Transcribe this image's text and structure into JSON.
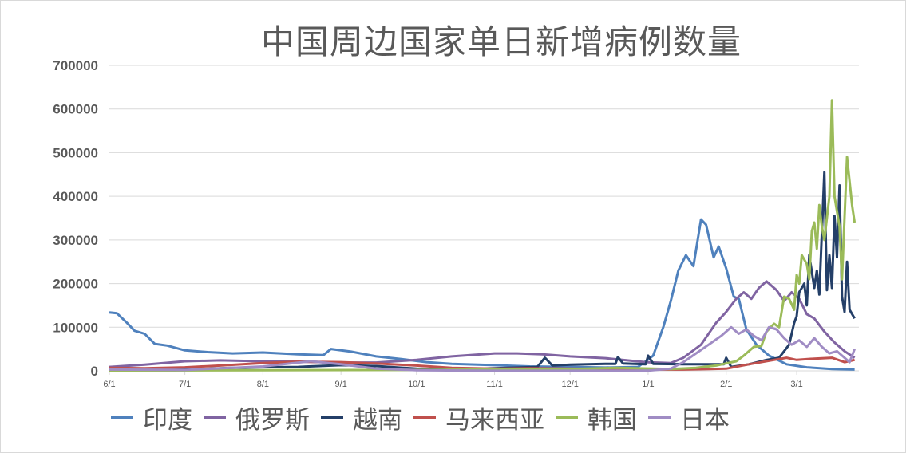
{
  "chart_data": {
    "type": "line",
    "title": "中国周边国家单日新增病例数量",
    "xlabel": "",
    "ylabel": "",
    "ylim": [
      0,
      700000
    ],
    "yticks": [
      "0",
      "100000",
      "200000",
      "300000",
      "400000",
      "500000",
      "600000",
      "700000"
    ],
    "xticks": [
      "6/1",
      "7/1",
      "8/1",
      "9/1",
      "10/1",
      "11/1",
      "12/1",
      "1/1",
      "2/1",
      "3/1"
    ],
    "xtick_dates": [
      "2021-06-01",
      "2021-07-01",
      "2021-08-01",
      "2021-09-01",
      "2021-10-01",
      "2021-11-01",
      "2021-12-01",
      "2022-01-01",
      "2022-02-01",
      "2022-03-01"
    ],
    "grid": true,
    "legend": "bottom",
    "series": [
      {
        "name": "印度",
        "color": "#4f81bd",
        "points": [
          [
            "2021-06-01",
            134000
          ],
          [
            "2021-06-04",
            132000
          ],
          [
            "2021-06-08",
            110000
          ],
          [
            "2021-06-11",
            92000
          ],
          [
            "2021-06-15",
            85000
          ],
          [
            "2021-06-19",
            62000
          ],
          [
            "2021-06-24",
            58000
          ],
          [
            "2021-07-01",
            47000
          ],
          [
            "2021-07-10",
            43000
          ],
          [
            "2021-07-20",
            40000
          ],
          [
            "2021-08-01",
            42000
          ],
          [
            "2021-08-15",
            38000
          ],
          [
            "2021-08-25",
            36000
          ],
          [
            "2021-08-28",
            50000
          ],
          [
            "2021-09-05",
            44000
          ],
          [
            "2021-09-15",
            33000
          ],
          [
            "2021-09-25",
            27000
          ],
          [
            "2021-10-05",
            20000
          ],
          [
            "2021-10-15",
            16000
          ],
          [
            "2021-11-01",
            13000
          ],
          [
            "2021-11-15",
            10000
          ],
          [
            "2021-12-01",
            9000
          ],
          [
            "2021-12-15",
            7500
          ],
          [
            "2021-12-28",
            9000
          ],
          [
            "2022-01-03",
            35000
          ],
          [
            "2022-01-07",
            100000
          ],
          [
            "2022-01-10",
            160000
          ],
          [
            "2022-01-13",
            230000
          ],
          [
            "2022-01-16",
            265000
          ],
          [
            "2022-01-19",
            240000
          ],
          [
            "2022-01-22",
            347000
          ],
          [
            "2022-01-24",
            335000
          ],
          [
            "2022-01-27",
            260000
          ],
          [
            "2022-01-29",
            285000
          ],
          [
            "2022-02-01",
            235000
          ],
          [
            "2022-02-04",
            170000
          ],
          [
            "2022-02-06",
            165000
          ],
          [
            "2022-02-09",
            95000
          ],
          [
            "2022-02-13",
            60000
          ],
          [
            "2022-02-18",
            35000
          ],
          [
            "2022-02-25",
            15000
          ],
          [
            "2022-03-05",
            8000
          ],
          [
            "2022-03-15",
            4000
          ],
          [
            "2022-03-24",
            3000
          ]
        ]
      },
      {
        "name": "俄罗斯",
        "color": "#8064a2",
        "points": [
          [
            "2021-06-01",
            9000
          ],
          [
            "2021-06-15",
            14000
          ],
          [
            "2021-07-01",
            22000
          ],
          [
            "2021-07-15",
            24000
          ],
          [
            "2021-08-01",
            22000
          ],
          [
            "2021-08-15",
            21000
          ],
          [
            "2021-09-01",
            19000
          ],
          [
            "2021-09-15",
            19000
          ],
          [
            "2021-10-01",
            25000
          ],
          [
            "2021-10-15",
            33000
          ],
          [
            "2021-11-01",
            40000
          ],
          [
            "2021-11-10",
            40000
          ],
          [
            "2021-11-20",
            38000
          ],
          [
            "2021-12-01",
            33000
          ],
          [
            "2021-12-15",
            29000
          ],
          [
            "2021-12-31",
            20000
          ],
          [
            "2022-01-10",
            18000
          ],
          [
            "2022-01-15",
            30000
          ],
          [
            "2022-01-22",
            60000
          ],
          [
            "2022-01-28",
            110000
          ],
          [
            "2022-02-01",
            135000
          ],
          [
            "2022-02-05",
            165000
          ],
          [
            "2022-02-08",
            180000
          ],
          [
            "2022-02-11",
            165000
          ],
          [
            "2022-02-14",
            190000
          ],
          [
            "2022-02-17",
            205000
          ],
          [
            "2022-02-21",
            185000
          ],
          [
            "2022-02-24",
            160000
          ],
          [
            "2022-02-27",
            180000
          ],
          [
            "2022-03-02",
            165000
          ],
          [
            "2022-03-05",
            130000
          ],
          [
            "2022-03-08",
            120000
          ],
          [
            "2022-03-12",
            90000
          ],
          [
            "2022-03-16",
            65000
          ],
          [
            "2022-03-20",
            45000
          ],
          [
            "2022-03-24",
            30000
          ]
        ]
      },
      {
        "name": "越南",
        "color": "#243f68",
        "points": [
          [
            "2021-06-01",
            200
          ],
          [
            "2021-07-01",
            3000
          ],
          [
            "2021-07-20",
            7000
          ],
          [
            "2021-08-01",
            8000
          ],
          [
            "2021-08-15",
            9000
          ],
          [
            "2021-09-01",
            13000
          ],
          [
            "2021-09-15",
            11000
          ],
          [
            "2021-10-01",
            5000
          ],
          [
            "2021-10-15",
            3500
          ],
          [
            "2021-11-01",
            6000
          ],
          [
            "2021-11-18",
            9000
          ],
          [
            "2021-11-21",
            30000
          ],
          [
            "2021-11-24",
            12000
          ],
          [
            "2021-12-01",
            14000
          ],
          [
            "2021-12-15",
            16000
          ],
          [
            "2021-12-19",
            16000
          ],
          [
            "2021-12-20",
            32000
          ],
          [
            "2021-12-22",
            17000
          ],
          [
            "2021-12-31",
            15000
          ],
          [
            "2022-01-01",
            35000
          ],
          [
            "2022-01-03",
            16000
          ],
          [
            "2022-01-15",
            15000
          ],
          [
            "2022-01-31",
            15000
          ],
          [
            "2022-02-01",
            30000
          ],
          [
            "2022-02-03",
            9000
          ],
          [
            "2022-02-10",
            15000
          ],
          [
            "2022-02-17",
            25000
          ],
          [
            "2022-02-22",
            30000
          ],
          [
            "2022-02-26",
            60000
          ],
          [
            "2022-02-28",
            110000
          ],
          [
            "2022-03-01",
            125000
          ],
          [
            "2022-03-02",
            180000
          ],
          [
            "2022-03-04",
            200000
          ],
          [
            "2022-03-05",
            150000
          ],
          [
            "2022-03-06",
            265000
          ],
          [
            "2022-03-08",
            190000
          ],
          [
            "2022-03-09",
            230000
          ],
          [
            "2022-03-10",
            175000
          ],
          [
            "2022-03-12",
            455000
          ],
          [
            "2022-03-13",
            185000
          ],
          [
            "2022-03-14",
            265000
          ],
          [
            "2022-03-15",
            190000
          ],
          [
            "2022-03-16",
            355000
          ],
          [
            "2022-03-17",
            260000
          ],
          [
            "2022-03-18",
            425000
          ],
          [
            "2022-03-19",
            170000
          ],
          [
            "2022-03-20",
            135000
          ],
          [
            "2022-03-21",
            250000
          ],
          [
            "2022-03-22",
            140000
          ],
          [
            "2022-03-24",
            120000
          ]
        ]
      },
      {
        "name": "马来西亚",
        "color": "#c0504d",
        "points": [
          [
            "2021-06-01",
            7000
          ],
          [
            "2021-06-15",
            6000
          ],
          [
            "2021-07-01",
            8000
          ],
          [
            "2021-07-15",
            12000
          ],
          [
            "2021-08-01",
            18000
          ],
          [
            "2021-08-15",
            21000
          ],
          [
            "2021-09-01",
            20000
          ],
          [
            "2021-09-15",
            17000
          ],
          [
            "2021-10-01",
            12000
          ],
          [
            "2021-10-15",
            7000
          ],
          [
            "2021-11-01",
            5000
          ],
          [
            "2021-11-15",
            6000
          ],
          [
            "2021-12-01",
            5000
          ],
          [
            "2021-12-15",
            4000
          ],
          [
            "2022-01-01",
            3000
          ],
          [
            "2022-01-15",
            3000
          ],
          [
            "2022-02-01",
            5000
          ],
          [
            "2022-02-10",
            15000
          ],
          [
            "2022-02-20",
            25000
          ],
          [
            "2022-02-25",
            30000
          ],
          [
            "2022-03-01",
            25000
          ],
          [
            "2022-03-08",
            28000
          ],
          [
            "2022-03-15",
            30000
          ],
          [
            "2022-03-20",
            20000
          ],
          [
            "2022-03-24",
            25000
          ]
        ]
      },
      {
        "name": "韩国",
        "color": "#9bbb59",
        "points": [
          [
            "2021-06-01",
            500
          ],
          [
            "2021-08-01",
            1500
          ],
          [
            "2021-10-01",
            2000
          ],
          [
            "2021-12-01",
            4000
          ],
          [
            "2021-12-20",
            7000
          ],
          [
            "2022-01-10",
            4000
          ],
          [
            "2022-01-20",
            7000
          ],
          [
            "2022-01-28",
            12000
          ],
          [
            "2022-02-01",
            17000
          ],
          [
            "2022-02-05",
            22000
          ],
          [
            "2022-02-08",
            35000
          ],
          [
            "2022-02-12",
            55000
          ],
          [
            "2022-02-15",
            57000
          ],
          [
            "2022-02-17",
            90000
          ],
          [
            "2022-02-20",
            108000
          ],
          [
            "2022-02-22",
            100000
          ],
          [
            "2022-02-24",
            170000
          ],
          [
            "2022-02-26",
            165000
          ],
          [
            "2022-02-28",
            140000
          ],
          [
            "2022-03-01",
            220000
          ],
          [
            "2022-03-02",
            200000
          ],
          [
            "2022-03-03",
            265000
          ],
          [
            "2022-03-05",
            245000
          ],
          [
            "2022-03-06",
            210000
          ],
          [
            "2022-03-07",
            320000
          ],
          [
            "2022-03-08",
            340000
          ],
          [
            "2022-03-09",
            280000
          ],
          [
            "2022-03-10",
            380000
          ],
          [
            "2022-03-11",
            330000
          ],
          [
            "2022-03-12",
            300000
          ],
          [
            "2022-03-14",
            400000
          ],
          [
            "2022-03-15",
            620000
          ],
          [
            "2022-03-16",
            400000
          ],
          [
            "2022-03-18",
            330000
          ],
          [
            "2022-03-19",
            210000
          ],
          [
            "2022-03-21",
            490000
          ],
          [
            "2022-03-23",
            380000
          ],
          [
            "2022-03-24",
            340000
          ]
        ]
      },
      {
        "name": "日本",
        "color": "#a08cc4",
        "points": [
          [
            "2021-06-01",
            3000
          ],
          [
            "2021-07-01",
            2000
          ],
          [
            "2021-08-01",
            10000
          ],
          [
            "2021-08-20",
            22000
          ],
          [
            "2021-09-01",
            15000
          ],
          [
            "2021-09-15",
            5000
          ],
          [
            "2021-10-01",
            1500
          ],
          [
            "2021-11-01",
            200
          ],
          [
            "2021-12-01",
            200
          ],
          [
            "2022-01-01",
            500
          ],
          [
            "2022-01-10",
            5000
          ],
          [
            "2022-01-15",
            20000
          ],
          [
            "2022-01-20",
            40000
          ],
          [
            "2022-01-25",
            60000
          ],
          [
            "2022-01-30",
            80000
          ],
          [
            "2022-02-03",
            100000
          ],
          [
            "2022-02-06",
            85000
          ],
          [
            "2022-02-09",
            95000
          ],
          [
            "2022-02-12",
            80000
          ],
          [
            "2022-02-15",
            70000
          ],
          [
            "2022-02-18",
            100000
          ],
          [
            "2022-02-21",
            95000
          ],
          [
            "2022-02-24",
            75000
          ],
          [
            "2022-02-27",
            60000
          ],
          [
            "2022-03-02",
            70000
          ],
          [
            "2022-03-05",
            55000
          ],
          [
            "2022-03-08",
            75000
          ],
          [
            "2022-03-11",
            55000
          ],
          [
            "2022-03-14",
            40000
          ],
          [
            "2022-03-17",
            45000
          ],
          [
            "2022-03-20",
            30000
          ],
          [
            "2022-03-22",
            20000
          ],
          [
            "2022-03-24",
            50000
          ]
        ]
      }
    ]
  }
}
